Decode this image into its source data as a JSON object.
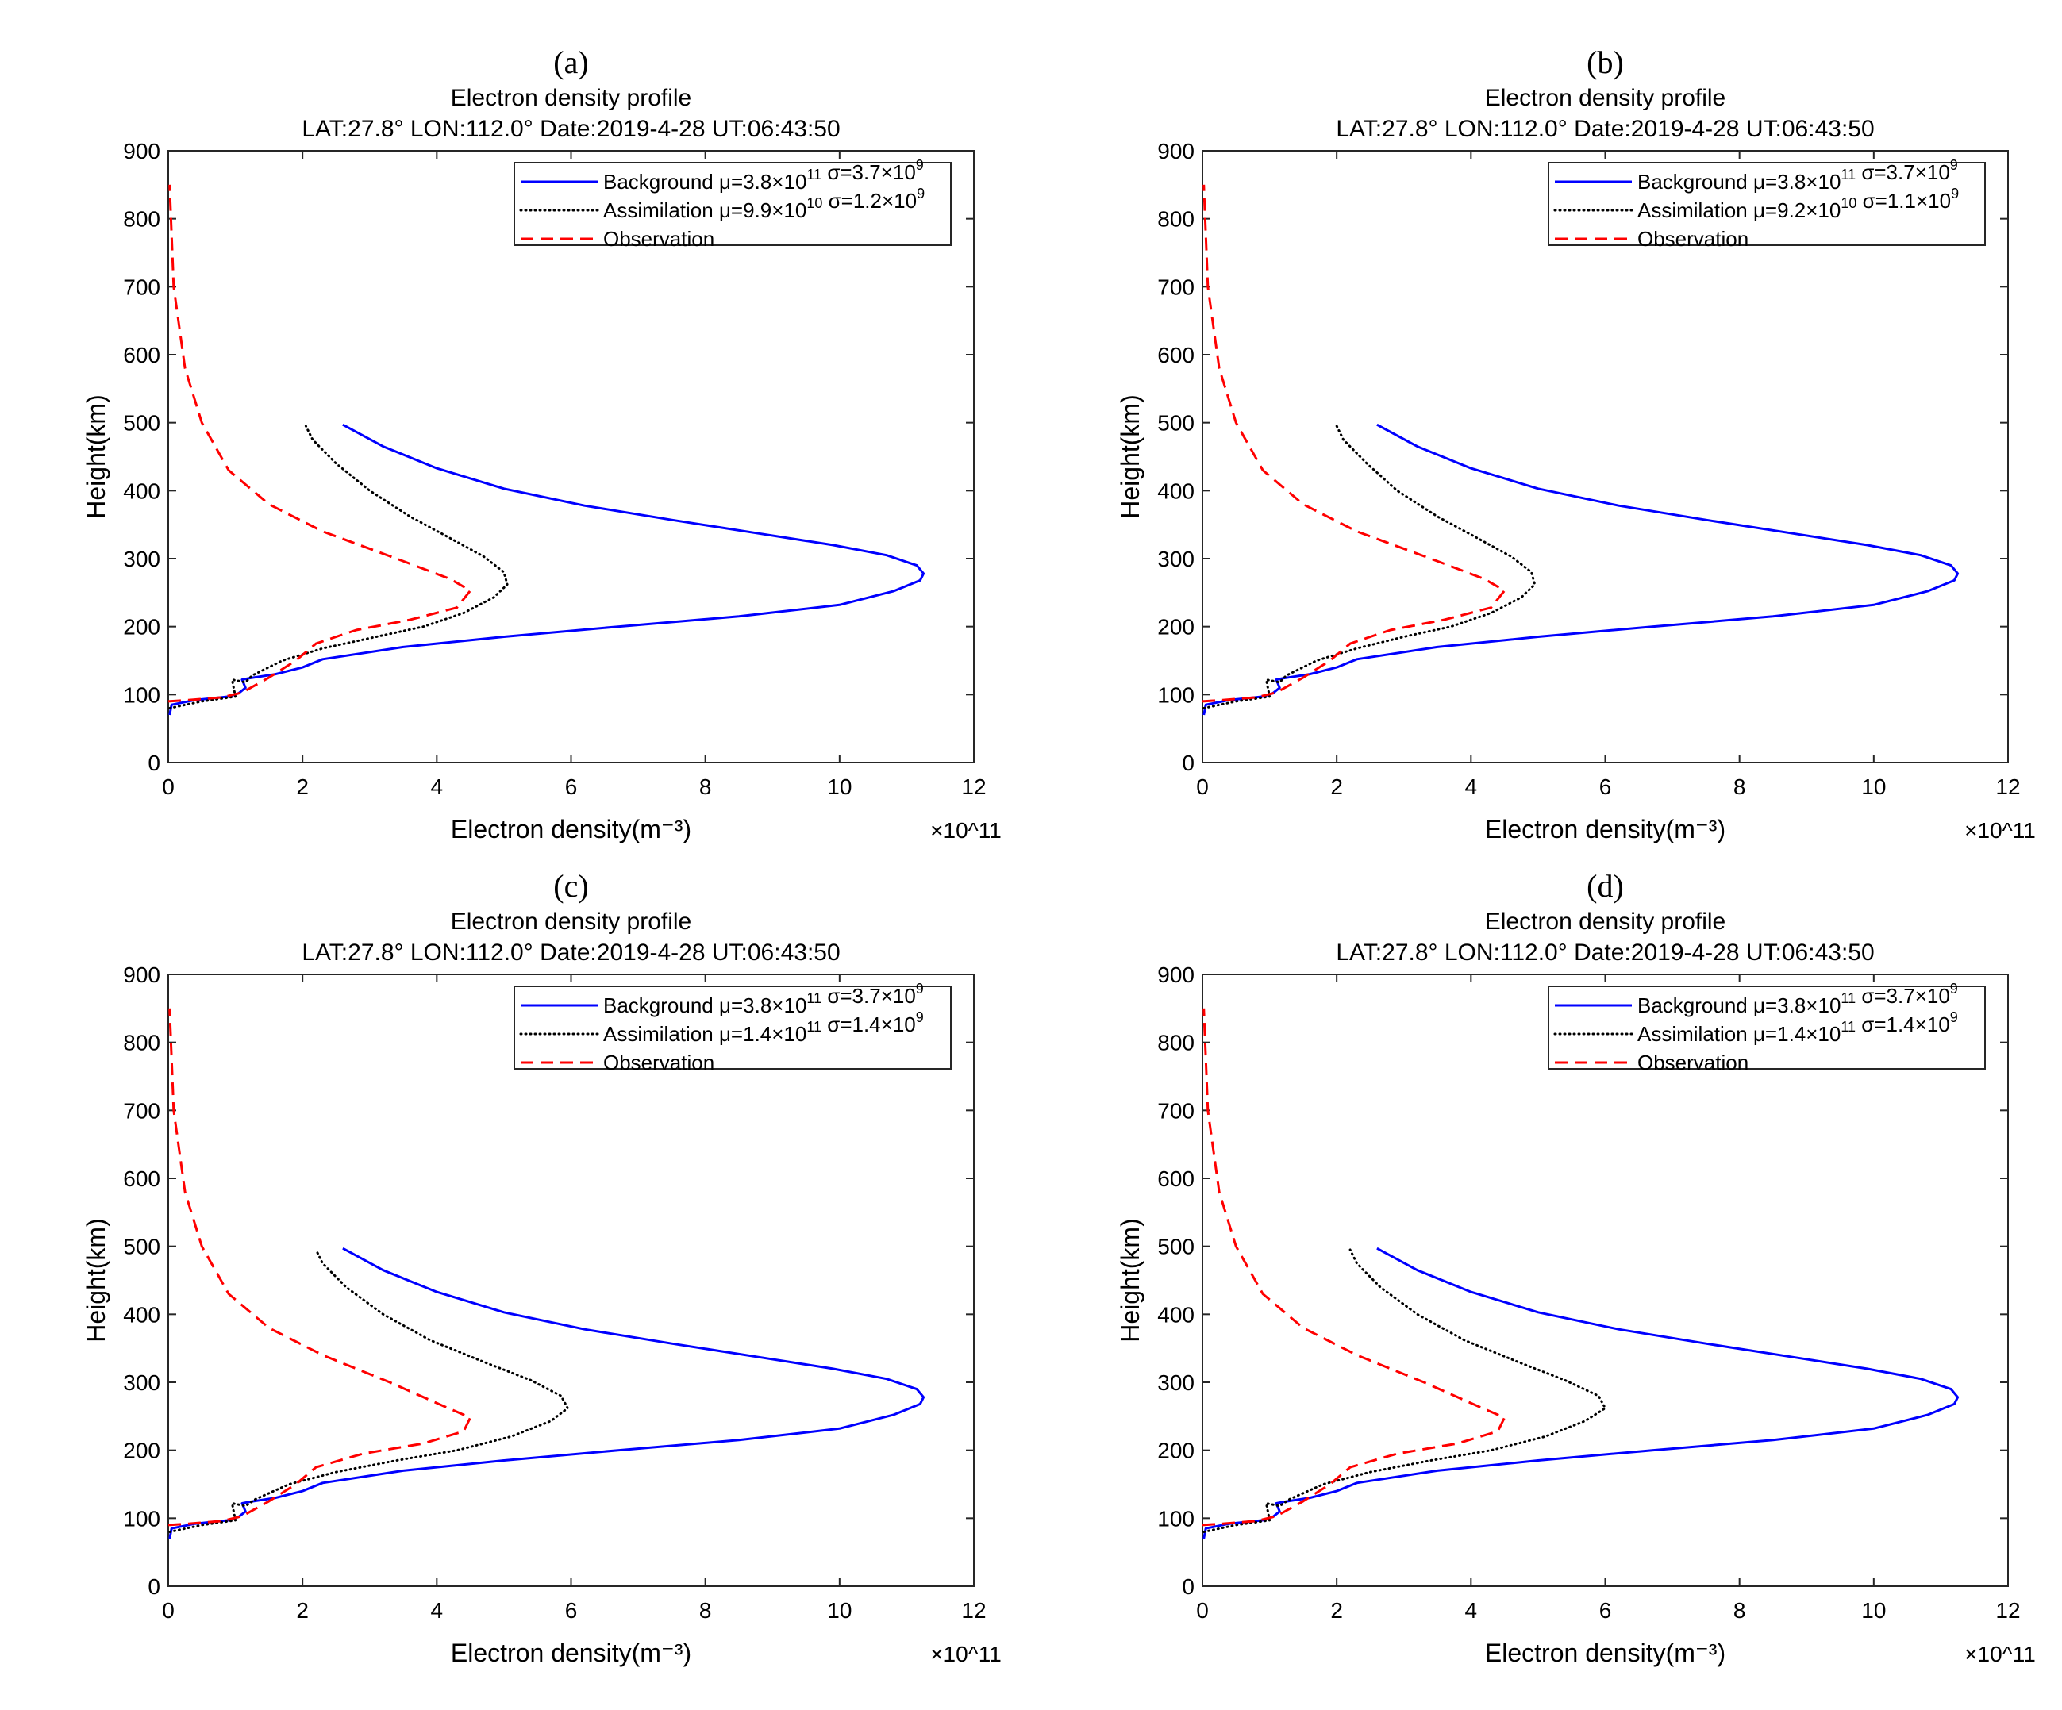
{
  "figure": {
    "panels": [
      {
        "label": "(a)",
        "title": "Electron density profile",
        "subtitle": "LAT:27.8° LON:112.0°  Date:2019-4-28  UT:06:43:50",
        "legend": [
          {
            "key": "background",
            "name": "Background",
            "stats": [
              {
                "pre": " μ=3.8×10",
                "exp": "11"
              },
              {
                "pre": " σ=3.7×10",
                "exp": "9"
              }
            ]
          },
          {
            "key": "assimilation",
            "name": "Assimilation",
            "stats": [
              {
                "pre": " μ=9.9×10",
                "exp": "10"
              },
              {
                "pre": " σ=1.2×10",
                "exp": "9"
              }
            ]
          },
          {
            "key": "observation",
            "name": "Observation",
            "stats": []
          }
        ]
      },
      {
        "label": "(b)",
        "title": "Electron density profile",
        "subtitle": "LAT:27.8° LON:112.0°  Date:2019-4-28  UT:06:43:50",
        "legend": [
          {
            "key": "background",
            "name": "Background",
            "stats": [
              {
                "pre": " μ=3.8×10",
                "exp": "11"
              },
              {
                "pre": " σ=3.7×10",
                "exp": "9"
              }
            ]
          },
          {
            "key": "assimilation",
            "name": "Assimilation",
            "stats": [
              {
                "pre": " μ=9.2×10",
                "exp": "10"
              },
              {
                "pre": " σ=1.1×10",
                "exp": "9"
              }
            ]
          },
          {
            "key": "observation",
            "name": "Observation",
            "stats": []
          }
        ]
      },
      {
        "label": "(c)",
        "title": "Electron density profile",
        "subtitle": "LAT:27.8° LON:112.0°  Date:2019-4-28  UT:06:43:50",
        "legend": [
          {
            "key": "background",
            "name": "Background",
            "stats": [
              {
                "pre": " μ=3.8×10",
                "exp": "11"
              },
              {
                "pre": " σ=3.7×10",
                "exp": "9"
              }
            ]
          },
          {
            "key": "assimilation",
            "name": "Assimilation",
            "stats": [
              {
                "pre": " μ=1.4×10",
                "exp": "11"
              },
              {
                "pre": " σ=1.4×10",
                "exp": "9"
              }
            ]
          },
          {
            "key": "observation",
            "name": "Observation",
            "stats": []
          }
        ]
      },
      {
        "label": "(d)",
        "title": "Electron density profile",
        "subtitle": "LAT:27.8° LON:112.0°  Date:2019-4-28  UT:06:43:50",
        "legend": [
          {
            "key": "background",
            "name": "Background",
            "stats": [
              {
                "pre": " μ=3.8×10",
                "exp": "11"
              },
              {
                "pre": " σ=3.7×10",
                "exp": "9"
              }
            ]
          },
          {
            "key": "assimilation",
            "name": "Assimilation",
            "stats": [
              {
                "pre": " μ=1.4×10",
                "exp": "11"
              },
              {
                "pre": " σ=1.4×10",
                "exp": "9"
              }
            ]
          },
          {
            "key": "observation",
            "name": "Observation",
            "stats": []
          }
        ]
      }
    ]
  },
  "chart_data": [
    {
      "type": "line",
      "panel": "(a)",
      "title": "Electron density profile",
      "subtitle": "LAT:27.8° LON:112.0°  Date:2019-4-28  UT:06:43:50",
      "xlabel": "Electron density(m⁻³)",
      "ylabel": "Height(km)",
      "x_multiplier": "×10^11",
      "xlim": [
        0,
        12
      ],
      "ylim": [
        0,
        900
      ],
      "xticks": [
        0,
        2,
        4,
        6,
        8,
        10,
        12
      ],
      "yticks": [
        0,
        100,
        200,
        300,
        400,
        500,
        600,
        700,
        800,
        900
      ],
      "legend_position": "top-right",
      "series": [
        {
          "name": "Background",
          "style": "solid",
          "color": "#0000ff",
          "x": [
            0.02,
            0.05,
            0.4,
            0.9,
            1.05,
            1.15,
            1.1,
            1.2,
            1.6,
            2.0,
            2.3,
            3.5,
            5.0,
            6.7,
            8.5,
            10.0,
            10.8,
            11.2,
            11.25,
            11.15,
            10.7,
            9.9,
            8.8,
            7.5,
            6.2,
            5.0,
            4.0,
            3.2,
            2.6
          ],
          "y": [
            70,
            85,
            92,
            97,
            102,
            110,
            122,
            124,
            130,
            140,
            152,
            170,
            185,
            200,
            215,
            232,
            252,
            268,
            278,
            290,
            305,
            320,
            337,
            357,
            378,
            403,
            433,
            465,
            497
          ]
        },
        {
          "name": "Assimilation",
          "style": "dotted",
          "color": "#000000",
          "x": [
            0.02,
            0.5,
            1.0,
            0.95,
            1.15,
            1.25,
            1.7,
            2.3,
            3.1,
            3.8,
            4.4,
            4.85,
            5.05,
            5.0,
            4.7,
            4.2,
            3.6,
            3.0,
            2.5,
            2.15,
            2.05
          ],
          "y": [
            80,
            90,
            97,
            122,
            118,
            128,
            150,
            168,
            185,
            200,
            220,
            243,
            262,
            280,
            303,
            330,
            362,
            400,
            440,
            475,
            495
          ]
        },
        {
          "name": "Observation",
          "style": "dashed",
          "color": "#ff0000",
          "x": [
            0.0,
            0.3,
            0.8,
            1.1,
            1.5,
            1.9,
            2.2,
            2.8,
            3.6,
            4.3,
            4.5,
            4.2,
            3.4,
            2.3,
            1.5,
            0.9,
            0.5,
            0.25,
            0.08,
            0.02
          ],
          "y": [
            90,
            92,
            96,
            103,
            125,
            150,
            175,
            195,
            210,
            228,
            253,
            270,
            300,
            340,
            380,
            430,
            500,
            580,
            700,
            850
          ]
        }
      ]
    },
    {
      "type": "line",
      "panel": "(b)",
      "title": "Electron density profile",
      "subtitle": "LAT:27.8° LON:112.0°  Date:2019-4-28  UT:06:43:50",
      "xlabel": "Electron density(m⁻³)",
      "ylabel": "Height(km)",
      "x_multiplier": "×10^11",
      "xlim": [
        0,
        12
      ],
      "ylim": [
        0,
        900
      ],
      "xticks": [
        0,
        2,
        4,
        6,
        8,
        10,
        12
      ],
      "yticks": [
        0,
        100,
        200,
        300,
        400,
        500,
        600,
        700,
        800,
        900
      ],
      "legend_position": "top-right",
      "series": [
        {
          "name": "Background",
          "style": "solid",
          "color": "#0000ff",
          "x": [
            0.02,
            0.05,
            0.4,
            0.9,
            1.05,
            1.15,
            1.1,
            1.2,
            1.6,
            2.0,
            2.3,
            3.5,
            5.0,
            6.7,
            8.5,
            10.0,
            10.8,
            11.2,
            11.25,
            11.15,
            10.7,
            9.9,
            8.8,
            7.5,
            6.2,
            5.0,
            4.0,
            3.2,
            2.6
          ],
          "y": [
            70,
            85,
            92,
            97,
            102,
            110,
            122,
            124,
            130,
            140,
            152,
            170,
            185,
            200,
            215,
            232,
            252,
            268,
            278,
            290,
            305,
            320,
            337,
            357,
            378,
            403,
            433,
            465,
            497
          ]
        },
        {
          "name": "Assimilation",
          "style": "dotted",
          "color": "#000000",
          "x": [
            0.02,
            0.5,
            1.0,
            0.95,
            1.15,
            1.25,
            1.7,
            2.3,
            3.0,
            3.7,
            4.3,
            4.75,
            4.95,
            4.9,
            4.6,
            4.1,
            3.5,
            2.9,
            2.45,
            2.1,
            2.0
          ],
          "y": [
            80,
            90,
            97,
            122,
            118,
            128,
            150,
            168,
            185,
            200,
            220,
            243,
            262,
            280,
            303,
            330,
            362,
            400,
            440,
            475,
            495
          ]
        },
        {
          "name": "Observation",
          "style": "dashed",
          "color": "#ff0000",
          "x": [
            0.0,
            0.3,
            0.8,
            1.1,
            1.5,
            1.9,
            2.2,
            2.8,
            3.6,
            4.3,
            4.5,
            4.2,
            3.4,
            2.3,
            1.5,
            0.9,
            0.5,
            0.25,
            0.08,
            0.02
          ],
          "y": [
            90,
            92,
            96,
            103,
            125,
            150,
            175,
            195,
            210,
            228,
            253,
            270,
            300,
            340,
            380,
            430,
            500,
            580,
            700,
            850
          ]
        }
      ]
    },
    {
      "type": "line",
      "panel": "(c)",
      "title": "Electron density profile",
      "subtitle": "LAT:27.8° LON:112.0°  Date:2019-4-28  UT:06:43:50",
      "xlabel": "Electron density(m⁻³)",
      "ylabel": "Height(km)",
      "x_multiplier": "×10^11",
      "xlim": [
        0,
        12
      ],
      "ylim": [
        0,
        900
      ],
      "xticks": [
        0,
        2,
        4,
        6,
        8,
        10,
        12
      ],
      "yticks": [
        0,
        100,
        200,
        300,
        400,
        500,
        600,
        700,
        800,
        900
      ],
      "legend_position": "top-right",
      "series": [
        {
          "name": "Background",
          "style": "solid",
          "color": "#0000ff",
          "x": [
            0.02,
            0.05,
            0.4,
            0.9,
            1.05,
            1.15,
            1.1,
            1.2,
            1.6,
            2.0,
            2.3,
            3.5,
            5.0,
            6.7,
            8.5,
            10.0,
            10.8,
            11.2,
            11.25,
            11.15,
            10.7,
            9.9,
            8.8,
            7.5,
            6.2,
            5.0,
            4.0,
            3.2,
            2.6
          ],
          "y": [
            70,
            85,
            92,
            97,
            102,
            110,
            122,
            124,
            130,
            140,
            152,
            170,
            185,
            200,
            215,
            232,
            252,
            268,
            278,
            290,
            305,
            320,
            337,
            357,
            378,
            403,
            433,
            465,
            497
          ]
        },
        {
          "name": "Assimilation",
          "style": "dotted",
          "color": "#000000",
          "x": [
            0.02,
            0.5,
            1.0,
            0.95,
            1.15,
            1.3,
            1.8,
            2.5,
            3.4,
            4.3,
            5.1,
            5.7,
            5.95,
            5.85,
            5.4,
            4.7,
            3.9,
            3.2,
            2.65,
            2.3,
            2.2
          ],
          "y": [
            80,
            90,
            97,
            122,
            118,
            128,
            150,
            168,
            185,
            200,
            220,
            243,
            262,
            280,
            303,
            330,
            362,
            400,
            440,
            475,
            495
          ]
        },
        {
          "name": "Observation",
          "style": "dashed",
          "color": "#ff0000",
          "x": [
            0.0,
            0.3,
            0.8,
            1.1,
            1.5,
            1.9,
            2.2,
            2.9,
            3.8,
            4.4,
            4.5,
            4.1,
            3.3,
            2.3,
            1.5,
            0.9,
            0.5,
            0.25,
            0.08,
            0.02
          ],
          "y": [
            90,
            92,
            96,
            103,
            125,
            150,
            175,
            195,
            210,
            228,
            248,
            265,
            300,
            340,
            380,
            430,
            500,
            580,
            700,
            850
          ]
        }
      ]
    },
    {
      "type": "line",
      "panel": "(d)",
      "title": "Electron density profile",
      "subtitle": "LAT:27.8° LON:112.0°  Date:2019-4-28  UT:06:43:50",
      "xlabel": "Electron density(m⁻³)",
      "ylabel": "Height(km)",
      "x_multiplier": "×10^11",
      "xlim": [
        0,
        12
      ],
      "ylim": [
        0,
        900
      ],
      "xticks": [
        0,
        2,
        4,
        6,
        8,
        10,
        12
      ],
      "yticks": [
        0,
        100,
        200,
        300,
        400,
        500,
        600,
        700,
        800,
        900
      ],
      "legend_position": "top-right",
      "series": [
        {
          "name": "Background",
          "style": "solid",
          "color": "#0000ff",
          "x": [
            0.02,
            0.05,
            0.4,
            0.9,
            1.05,
            1.15,
            1.1,
            1.2,
            1.6,
            2.0,
            2.3,
            3.5,
            5.0,
            6.7,
            8.5,
            10.0,
            10.8,
            11.2,
            11.25,
            11.15,
            10.7,
            9.9,
            8.8,
            7.5,
            6.2,
            5.0,
            4.0,
            3.2,
            2.6
          ],
          "y": [
            70,
            85,
            92,
            97,
            102,
            110,
            122,
            124,
            130,
            140,
            152,
            170,
            185,
            200,
            215,
            232,
            252,
            268,
            278,
            290,
            305,
            320,
            337,
            357,
            378,
            403,
            433,
            465,
            497
          ]
        },
        {
          "name": "Assimilation",
          "style": "dotted",
          "color": "#000000",
          "x": [
            0.02,
            0.5,
            1.0,
            0.95,
            1.15,
            1.3,
            1.8,
            2.5,
            3.4,
            4.3,
            5.1,
            5.7,
            6.0,
            5.9,
            5.4,
            4.7,
            3.9,
            3.2,
            2.65,
            2.3,
            2.2
          ],
          "y": [
            80,
            90,
            97,
            122,
            118,
            128,
            150,
            168,
            185,
            200,
            220,
            243,
            262,
            280,
            303,
            330,
            362,
            400,
            440,
            475,
            495
          ]
        },
        {
          "name": "Observation",
          "style": "dashed",
          "color": "#ff0000",
          "x": [
            0.0,
            0.3,
            0.8,
            1.1,
            1.5,
            1.9,
            2.2,
            2.9,
            3.8,
            4.4,
            4.5,
            4.1,
            3.3,
            2.3,
            1.5,
            0.9,
            0.5,
            0.25,
            0.08,
            0.02
          ],
          "y": [
            90,
            92,
            96,
            103,
            125,
            150,
            175,
            195,
            210,
            228,
            248,
            265,
            300,
            340,
            380,
            430,
            500,
            580,
            700,
            850
          ]
        }
      ]
    }
  ]
}
